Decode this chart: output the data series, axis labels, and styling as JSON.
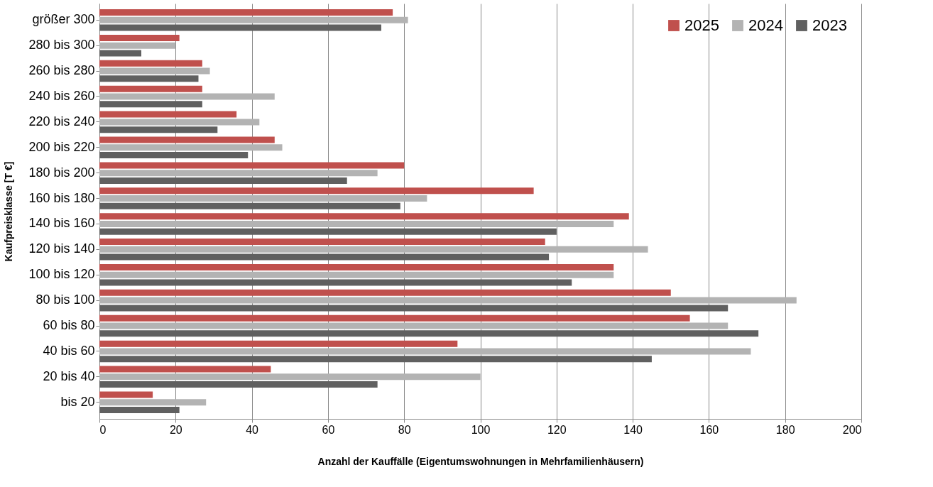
{
  "chart_data": {
    "type": "bar",
    "orientation": "horizontal",
    "categories": [
      "größer 300",
      "280 bis 300",
      "260 bis 280",
      "240 bis 260",
      "220 bis 240",
      "200 bis 220",
      "180 bis 200",
      "160 bis 180",
      "140 bis 160",
      "120 bis 140",
      "100 bis 120",
      "80 bis 100",
      "60 bis 80",
      "40 bis 60",
      "20 bis 40",
      "bis 20"
    ],
    "series": [
      {
        "name": "2025",
        "color": "#c0504d",
        "values": [
          77,
          21,
          27,
          27,
          36,
          46,
          80,
          114,
          139,
          117,
          135,
          150,
          155,
          94,
          45,
          14
        ]
      },
      {
        "name": "2024",
        "color": "#b3b3b3",
        "values": [
          81,
          20,
          29,
          46,
          42,
          48,
          73,
          86,
          135,
          144,
          135,
          183,
          165,
          171,
          100,
          28
        ]
      },
      {
        "name": "2023",
        "color": "#606060",
        "values": [
          74,
          11,
          26,
          27,
          31,
          39,
          65,
          79,
          120,
          118,
          124,
          165,
          173,
          145,
          73,
          21
        ]
      }
    ],
    "xlim": [
      0,
      200
    ],
    "xticks": [
      0,
      20,
      40,
      60,
      80,
      100,
      120,
      140,
      160,
      180,
      200
    ],
    "xlabel": "Anzahl der Kauffälle (Eigentumswohnungen in Mehrfamilienhäusern)",
    "ylabel": "Kaufpreisklasse  [T €]",
    "grid": "x",
    "legend": "top right"
  }
}
